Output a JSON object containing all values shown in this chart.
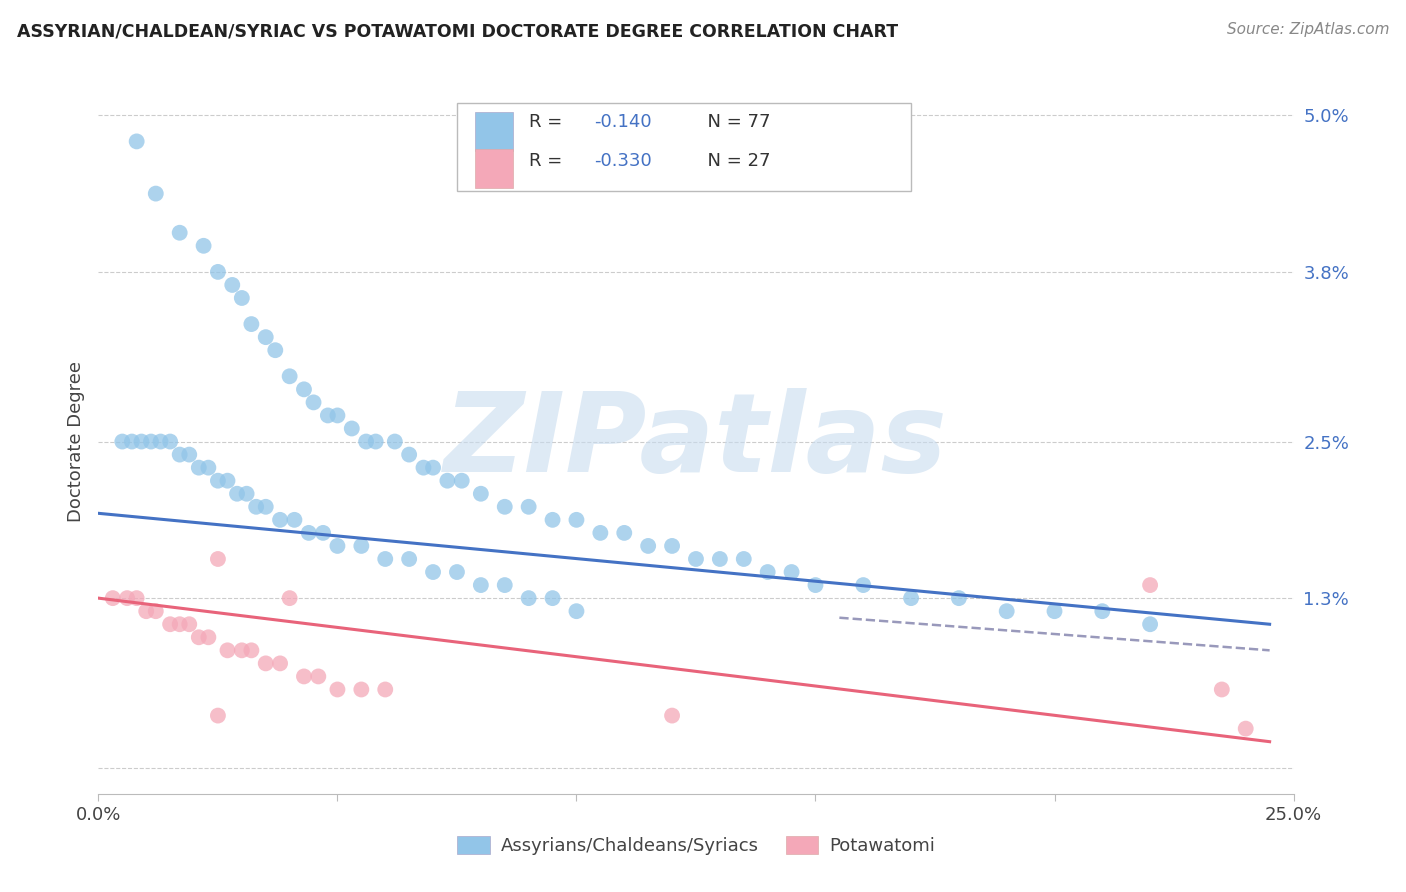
{
  "title": "ASSYRIAN/CHALDEAN/SYRIAC VS POTAWATOMI DOCTORATE DEGREE CORRELATION CHART",
  "source": "Source: ZipAtlas.com",
  "ylabel": "Doctorate Degree",
  "xlim": [
    0.0,
    0.25
  ],
  "ylim": [
    -0.002,
    0.052
  ],
  "ytick_positions": [
    0.0,
    0.013,
    0.025,
    0.038,
    0.05
  ],
  "ytick_labels": [
    "",
    "1.3%",
    "2.5%",
    "3.8%",
    "5.0%"
  ],
  "xtick_positions": [
    0.0,
    0.05,
    0.1,
    0.15,
    0.2,
    0.25
  ],
  "xtick_labels": [
    "0.0%",
    "",
    "",
    "",
    "",
    "25.0%"
  ],
  "background_color": "#ffffff",
  "grid_color": "#cccccc",
  "blue_color": "#92C5E8",
  "pink_color": "#F4A8B8",
  "blue_line_color": "#4472C4",
  "pink_line_color": "#E8637A",
  "dashed_line_color": "#9999BB",
  "watermark": "ZIPatlas",
  "legend_blue_label": "R =  -0.140   N = 77",
  "legend_pink_label": "R =  -0.330   N = 27",
  "blue_r_black": "R = ",
  "blue_r_colored": "-0.140",
  "blue_n": "  N = 77",
  "pink_r_black": "R = ",
  "pink_r_colored": "-0.330",
  "pink_n": "  N = 27",
  "r_n_color": "#4472C4",
  "blue_line_x": [
    0.0,
    0.245
  ],
  "blue_line_y": [
    0.0195,
    0.011
  ],
  "pink_line_x": [
    0.0,
    0.245
  ],
  "pink_line_y": [
    0.013,
    0.002
  ],
  "dashed_line_x": [
    0.155,
    0.245
  ],
  "dashed_line_y": [
    0.0115,
    0.009
  ],
  "blue_x": [
    0.008,
    0.012,
    0.017,
    0.022,
    0.025,
    0.028,
    0.03,
    0.032,
    0.035,
    0.037,
    0.04,
    0.043,
    0.045,
    0.048,
    0.05,
    0.053,
    0.056,
    0.058,
    0.062,
    0.065,
    0.068,
    0.07,
    0.073,
    0.076,
    0.08,
    0.085,
    0.09,
    0.095,
    0.1,
    0.105,
    0.11,
    0.115,
    0.12,
    0.125,
    0.13,
    0.135,
    0.14,
    0.145,
    0.15,
    0.16,
    0.17,
    0.18,
    0.19,
    0.2,
    0.21,
    0.22,
    0.005,
    0.007,
    0.009,
    0.011,
    0.013,
    0.015,
    0.017,
    0.019,
    0.021,
    0.023,
    0.025,
    0.027,
    0.029,
    0.031,
    0.033,
    0.035,
    0.038,
    0.041,
    0.044,
    0.047,
    0.05,
    0.055,
    0.06,
    0.065,
    0.07,
    0.075,
    0.08,
    0.085,
    0.09,
    0.095,
    0.1
  ],
  "blue_y": [
    0.048,
    0.044,
    0.041,
    0.04,
    0.038,
    0.037,
    0.036,
    0.034,
    0.033,
    0.032,
    0.03,
    0.029,
    0.028,
    0.027,
    0.027,
    0.026,
    0.025,
    0.025,
    0.025,
    0.024,
    0.023,
    0.023,
    0.022,
    0.022,
    0.021,
    0.02,
    0.02,
    0.019,
    0.019,
    0.018,
    0.018,
    0.017,
    0.017,
    0.016,
    0.016,
    0.016,
    0.015,
    0.015,
    0.014,
    0.014,
    0.013,
    0.013,
    0.012,
    0.012,
    0.012,
    0.011,
    0.025,
    0.025,
    0.025,
    0.025,
    0.025,
    0.025,
    0.024,
    0.024,
    0.023,
    0.023,
    0.022,
    0.022,
    0.021,
    0.021,
    0.02,
    0.02,
    0.019,
    0.019,
    0.018,
    0.018,
    0.017,
    0.017,
    0.016,
    0.016,
    0.015,
    0.015,
    0.014,
    0.014,
    0.013,
    0.013,
    0.012
  ],
  "pink_x": [
    0.003,
    0.006,
    0.008,
    0.01,
    0.012,
    0.015,
    0.017,
    0.019,
    0.021,
    0.023,
    0.025,
    0.027,
    0.03,
    0.032,
    0.035,
    0.038,
    0.04,
    0.043,
    0.046,
    0.05,
    0.055,
    0.06,
    0.12,
    0.22,
    0.235,
    0.24,
    0.025
  ],
  "pink_y": [
    0.013,
    0.013,
    0.013,
    0.012,
    0.012,
    0.011,
    0.011,
    0.011,
    0.01,
    0.01,
    0.016,
    0.009,
    0.009,
    0.009,
    0.008,
    0.008,
    0.013,
    0.007,
    0.007,
    0.006,
    0.006,
    0.006,
    0.004,
    0.014,
    0.006,
    0.003,
    0.004
  ]
}
